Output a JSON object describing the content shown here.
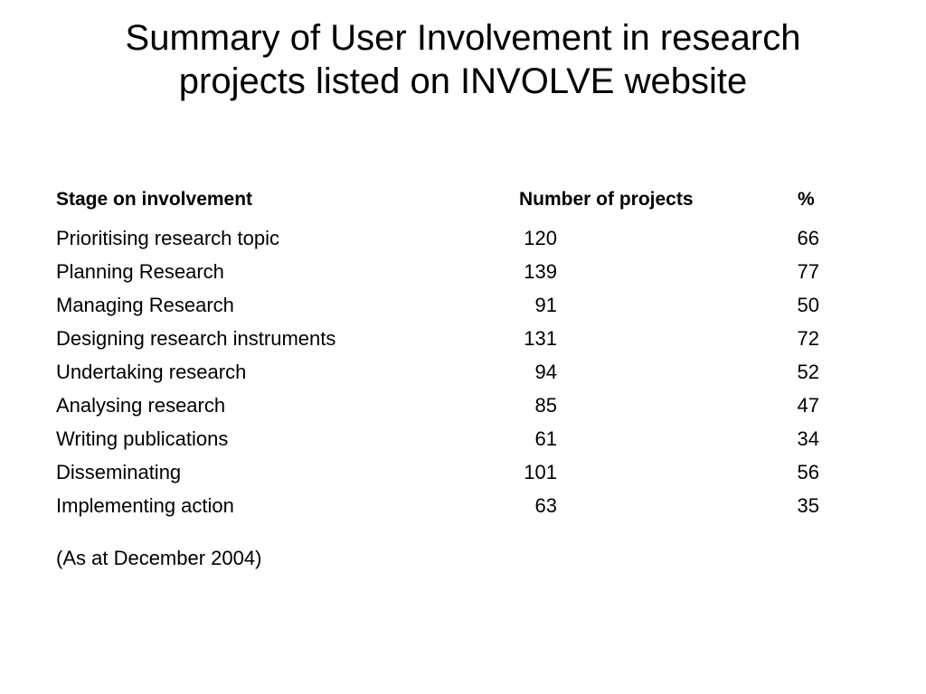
{
  "title": {
    "line1": "Summary of User Involvement in research",
    "line2": "projects listed on INVOLVE website"
  },
  "table": {
    "headers": {
      "stage": "Stage on involvement",
      "count": "Number of projects",
      "percent": "%"
    },
    "rows": [
      {
        "stage": "Prioritising research topic",
        "count": "120",
        "percent": "66"
      },
      {
        "stage": "Planning Research",
        "count": "139",
        "percent": "77"
      },
      {
        "stage": "Managing Research",
        "count": "91",
        "percent": "50"
      },
      {
        "stage": "Designing research instruments",
        "count": "131",
        "percent": "72"
      },
      {
        "stage": "Undertaking research",
        "count": "94",
        "percent": "52"
      },
      {
        "stage": "Analysing research",
        "count": "85",
        "percent": "47"
      },
      {
        "stage": "Writing publications",
        "count": "61",
        "percent": "34"
      },
      {
        "stage": "Disseminating",
        "count": "101",
        "percent": "56"
      },
      {
        "stage": "Implementing action",
        "count": "63",
        "percent": "35"
      }
    ]
  },
  "footnote": "(As at December 2004)"
}
